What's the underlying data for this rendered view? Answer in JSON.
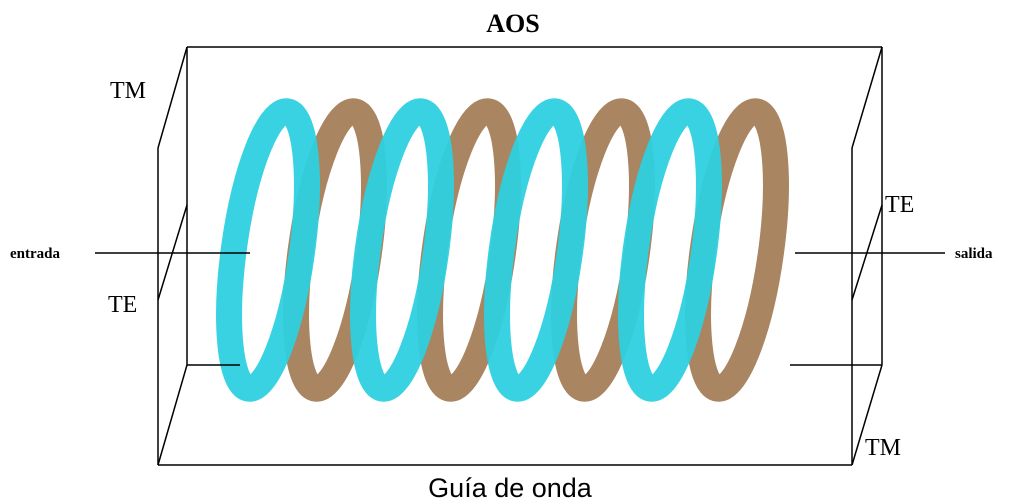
{
  "title": "AOS",
  "labels": {
    "tm_left": "TM",
    "te_left": "TE",
    "input": "entrada",
    "output": "salida",
    "te_right": "TE",
    "tm_right": "TM"
  },
  "caption": "Guía de onda"
}
